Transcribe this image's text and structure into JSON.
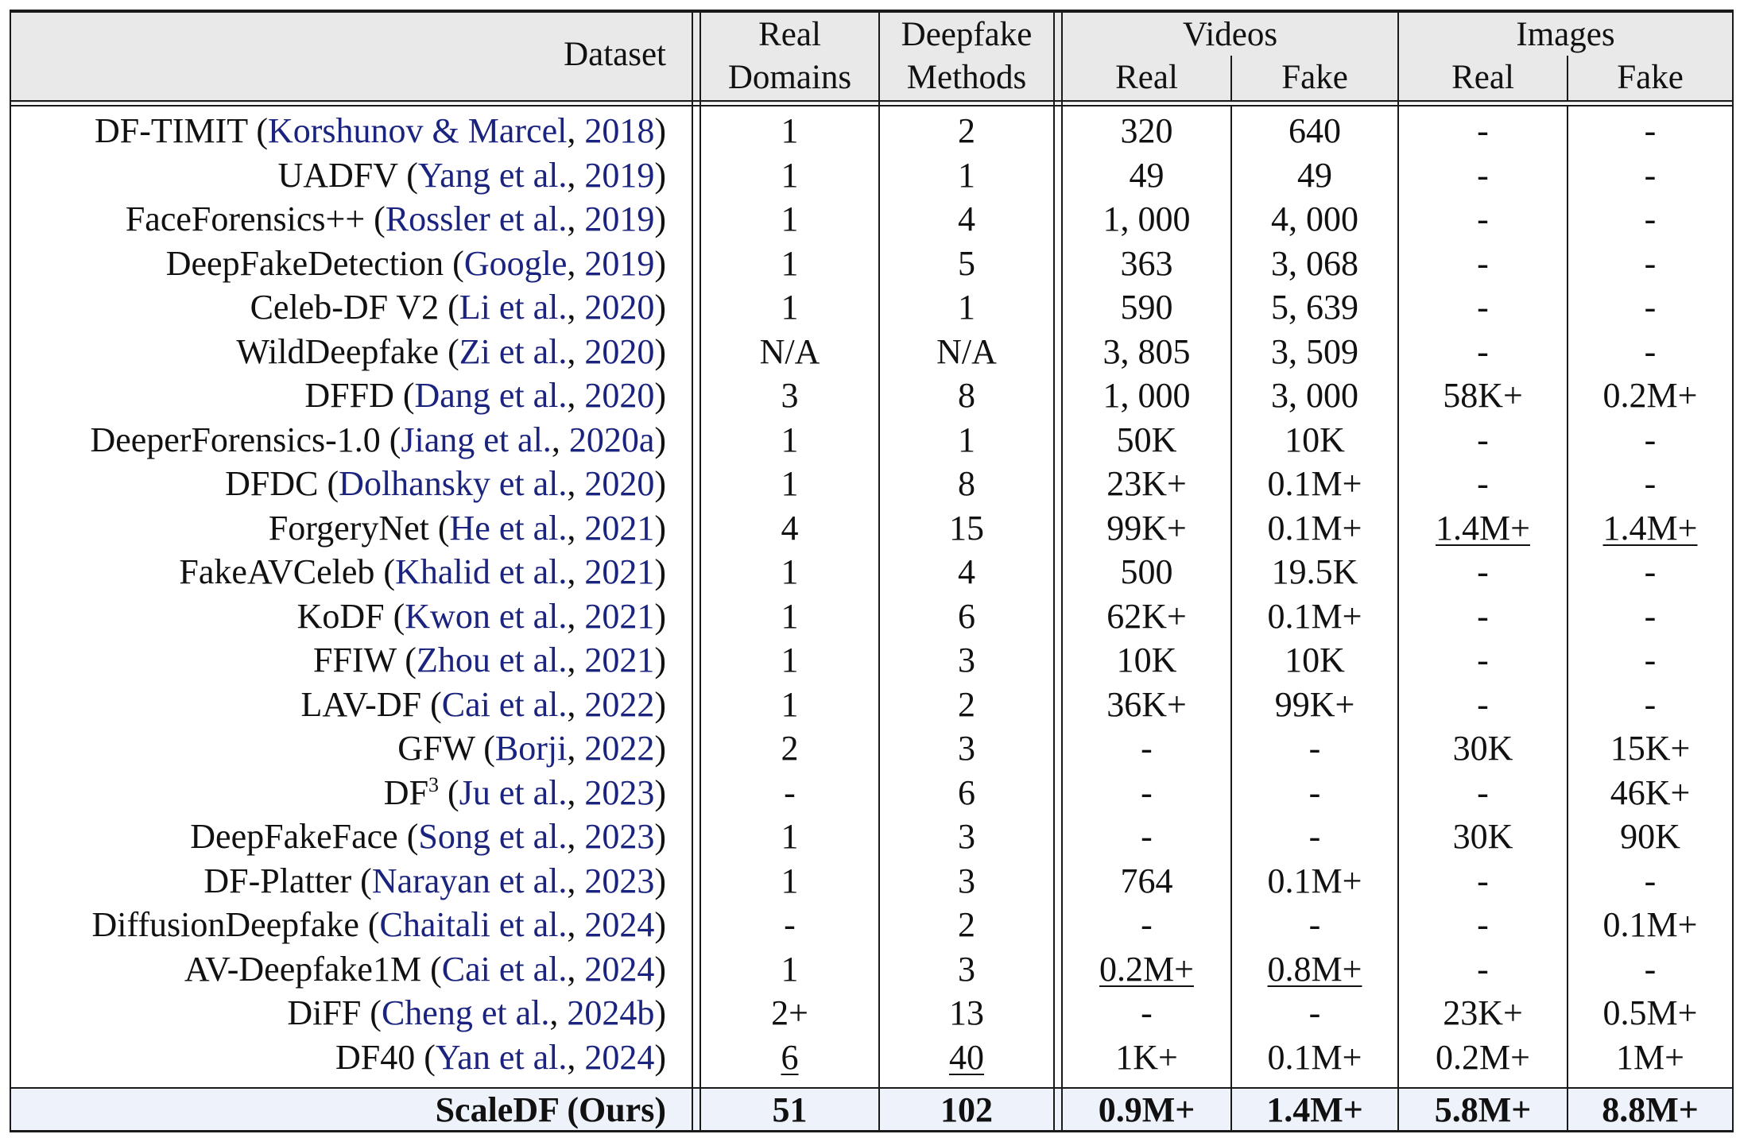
{
  "header": {
    "dataset": "Dataset",
    "real_domains_1": "Real",
    "real_domains_2": "Domains",
    "methods_1": "Deepfake",
    "methods_2": "Methods",
    "videos": "Videos",
    "images": "Images",
    "videos_real": "Real",
    "videos_fake": "Fake",
    "images_real": "Real",
    "images_fake": "Fake"
  },
  "rows": [
    {
      "name": "DF-TIMIT",
      "cite_pre": "Korshunov & Marcel",
      "cite_year": "2018",
      "domains": "1",
      "methods": "2",
      "v_real": "320",
      "v_fake": "640",
      "i_real": "-",
      "i_fake": "-"
    },
    {
      "name": "UADFV",
      "cite_pre": "Yang et al.",
      "cite_year": "2019",
      "domains": "1",
      "methods": "1",
      "v_real": "49",
      "v_fake": "49",
      "i_real": "-",
      "i_fake": "-"
    },
    {
      "name": "FaceForensics++",
      "cite_pre": "Rossler et al.",
      "cite_year": "2019",
      "domains": "1",
      "methods": "4",
      "v_real": "1, 000",
      "v_fake": "4, 000",
      "i_real": "-",
      "i_fake": "-"
    },
    {
      "name": "DeepFakeDetection",
      "cite_pre": "Google",
      "cite_year": "2019",
      "domains": "1",
      "methods": "5",
      "v_real": "363",
      "v_fake": "3, 068",
      "i_real": "-",
      "i_fake": "-"
    },
    {
      "name": "Celeb-DF V2",
      "cite_pre": "Li et al.",
      "cite_year": "2020",
      "domains": "1",
      "methods": "1",
      "v_real": "590",
      "v_fake": "5, 639",
      "i_real": "-",
      "i_fake": "-"
    },
    {
      "name": "WildDeepfake",
      "cite_pre": "Zi et al.",
      "cite_year": "2020",
      "domains": "N/A",
      "methods": "N/A",
      "v_real": "3, 805",
      "v_fake": "3, 509",
      "i_real": "-",
      "i_fake": "-"
    },
    {
      "name": "DFFD",
      "cite_pre": "Dang et al.",
      "cite_year": "2020",
      "domains": "3",
      "methods": "8",
      "v_real": "1, 000",
      "v_fake": "3, 000",
      "i_real": "58K+",
      "i_fake": "0.2M+"
    },
    {
      "name": "DeeperForensics-1.0",
      "cite_pre": "Jiang et al.",
      "cite_year": "2020a",
      "domains": "1",
      "methods": "1",
      "v_real": "50K",
      "v_fake": "10K",
      "i_real": "-",
      "i_fake": "-"
    },
    {
      "name": "DFDC",
      "cite_pre": "Dolhansky et al.",
      "cite_year": "2020",
      "domains": "1",
      "methods": "8",
      "v_real": "23K+",
      "v_fake": "0.1M+",
      "i_real": "-",
      "i_fake": "-"
    },
    {
      "name": "ForgeryNet",
      "cite_pre": "He et al.",
      "cite_year": "2021",
      "domains": "4",
      "methods": "15",
      "v_real": "99K+",
      "v_fake": "0.1M+",
      "i_real": "1.4M+",
      "i_fake": "1.4M+"
    },
    {
      "name": "FakeAVCeleb",
      "cite_pre": "Khalid et al.",
      "cite_year": "2021",
      "domains": "1",
      "methods": "4",
      "v_real": "500",
      "v_fake": "19.5K",
      "i_real": "-",
      "i_fake": "-"
    },
    {
      "name": "KoDF",
      "cite_pre": "Kwon et al.",
      "cite_year": "2021",
      "domains": "1",
      "methods": "6",
      "v_real": "62K+",
      "v_fake": "0.1M+",
      "i_real": "-",
      "i_fake": "-"
    },
    {
      "name": "FFIW",
      "cite_pre": "Zhou et al.",
      "cite_year": "2021",
      "domains": "1",
      "methods": "3",
      "v_real": "10K",
      "v_fake": "10K",
      "i_real": "-",
      "i_fake": "-"
    },
    {
      "name": "LAV-DF",
      "cite_pre": "Cai et al.",
      "cite_year": "2022",
      "domains": "1",
      "methods": "2",
      "v_real": "36K+",
      "v_fake": "99K+",
      "i_real": "-",
      "i_fake": "-"
    },
    {
      "name": "GFW",
      "cite_pre": "Borji",
      "cite_year": "2022",
      "domains": "2",
      "methods": "3",
      "v_real": "-",
      "v_fake": "-",
      "i_real": "30K",
      "i_fake": "15K+"
    },
    {
      "name": "DF",
      "name_sup": "3",
      "cite_pre": "Ju et al.",
      "cite_year": "2023",
      "domains": "-",
      "methods": "6",
      "v_real": "-",
      "v_fake": "-",
      "i_real": "-",
      "i_fake": "46K+"
    },
    {
      "name": "DeepFakeFace",
      "cite_pre": "Song et al.",
      "cite_year": "2023",
      "domains": "1",
      "methods": "3",
      "v_real": "-",
      "v_fake": "-",
      "i_real": "30K",
      "i_fake": "90K"
    },
    {
      "name": "DF-Platter",
      "cite_pre": "Narayan et al.",
      "cite_year": "2023",
      "domains": "1",
      "methods": "3",
      "v_real": "764",
      "v_fake": "0.1M+",
      "i_real": "-",
      "i_fake": "-"
    },
    {
      "name": "DiffusionDeepfake",
      "cite_pre": "Chaitali et al.",
      "cite_year": "2024",
      "domains": "-",
      "methods": "2",
      "v_real": "-",
      "v_fake": "-",
      "i_real": "-",
      "i_fake": "0.1M+"
    },
    {
      "name": "AV-Deepfake1M",
      "cite_pre": "Cai et al.",
      "cite_year": "2024",
      "domains": "1",
      "methods": "3",
      "v_real": "0.2M+",
      "v_fake": "0.8M+",
      "i_real": "-",
      "i_fake": "-"
    },
    {
      "name": "DiFF",
      "cite_pre": "Cheng et al.",
      "cite_year": "2024b",
      "domains": "2+",
      "methods": "13",
      "v_real": "-",
      "v_fake": "-",
      "i_real": "23K+",
      "i_fake": "0.5M+"
    },
    {
      "name": "DF40",
      "cite_pre": "Yan et al.",
      "cite_year": "2024",
      "domains": "6",
      "methods": "40",
      "v_real": "1K+",
      "v_fake": "0.1M+",
      "i_real": "0.2M+",
      "i_fake": "1M+"
    }
  ],
  "ours": {
    "name": "ScaleDF (Ours)",
    "domains": "51",
    "methods": "102",
    "v_real": "0.9M+",
    "v_fake": "1.4M+",
    "i_real": "5.8M+",
    "i_fake": "8.8M+"
  },
  "underlined": [
    "ForgeryNet.i_real",
    "ForgeryNet.i_fake",
    "AV-Deepfake1M.v_real",
    "AV-Deepfake1M.v_fake",
    "DF40.domains",
    "DF40.methods"
  ],
  "colors": {
    "citation": "#1a237e",
    "header_bg": "#e9e9e9",
    "ours_bg": "#eef2fa"
  }
}
